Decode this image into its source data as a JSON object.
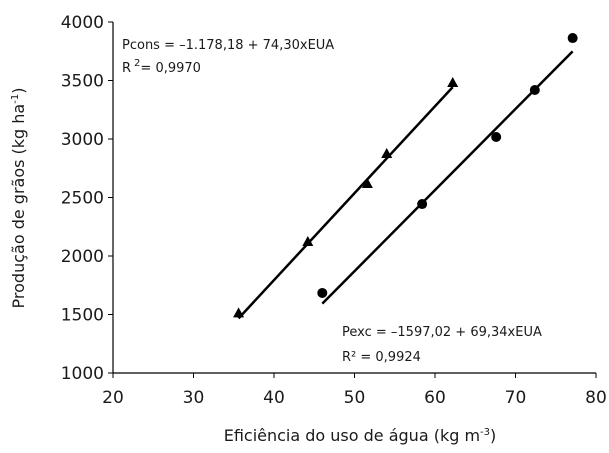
{
  "chart_data": {
    "type": "scatter",
    "x_label": {
      "text": "Eficiência do uso de água (kg m",
      "sup": "-3",
      "after": ")"
    },
    "y_label": {
      "text": "Produção de grãos (kg ha",
      "sup": "-1",
      "after": ")"
    },
    "series": [
      {
        "marker": "triangle",
        "color": "#000000",
        "x": [
          35.6,
          44.2,
          51.6,
          54.0,
          62.2
        ],
        "y": [
          1510,
          2120,
          2615,
          2872,
          3479
        ],
        "fit": {
          "intercept": -1178.18,
          "slope": 74.3
        }
      },
      {
        "marker": "circle",
        "color": "#000000",
        "x": [
          46.0,
          58.4,
          67.6,
          72.4,
          77.1
        ],
        "y": [
          1684,
          2444,
          3017,
          3419,
          3863
        ],
        "fit": {
          "intercept": -1597.02,
          "slope": 69.34
        }
      }
    ],
    "annotations": [
      {
        "text": "Pcons  = –1.178,18 + 74,30xEUA"
      },
      {
        "text": "R",
        "sup": "2",
        "after": "= 0,9970"
      },
      {
        "text": "Pexc  = –1597,02 + 69,34xEUA"
      },
      {
        "text": "R² = 0,9924"
      }
    ],
    "xlim": [
      20,
      80
    ],
    "xticks": [
      20,
      30,
      40,
      50,
      60,
      70,
      80
    ],
    "ylim": [
      1000,
      4000
    ],
    "yticks": [
      1000,
      1500,
      2000,
      2500,
      3000,
      3500,
      4000
    ],
    "grid": false
  }
}
